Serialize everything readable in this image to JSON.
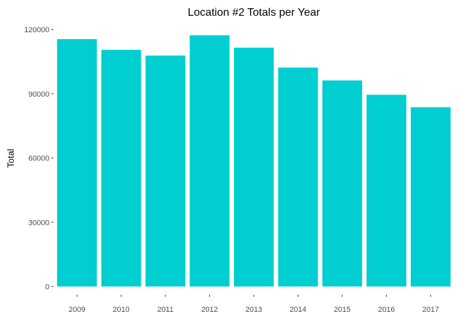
{
  "chart_data": {
    "type": "bar",
    "title": "Location #2 Totals per Year",
    "xlabel": "",
    "ylabel": "Total",
    "categories": [
      "2009",
      "2010",
      "2011",
      "2012",
      "2013",
      "2014",
      "2015",
      "2016",
      "2017"
    ],
    "values": [
      115500,
      110500,
      107800,
      117300,
      111500,
      102200,
      96200,
      89500,
      83700
    ],
    "ylim": [
      0,
      120000
    ],
    "yticks": [
      0,
      30000,
      60000,
      90000,
      120000
    ],
    "ytick_labels": [
      "0",
      "30000",
      "60000",
      "90000",
      "120000"
    ],
    "bar_color": "#00CED1",
    "grid": false,
    "legend": "none"
  }
}
